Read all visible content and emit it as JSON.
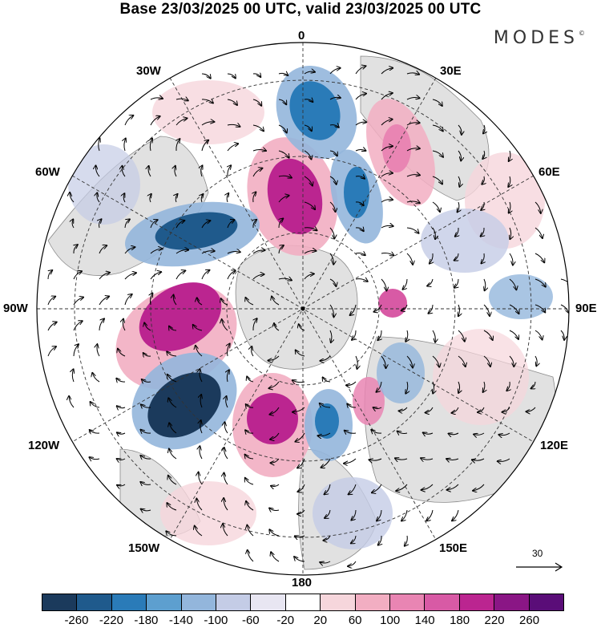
{
  "title": "Base 23/03/2025 00 UTC, valid 23/03/2025 00 UTC",
  "logo": "MODES",
  "logo_mark": "©",
  "meridian_labels": {
    "lon_0": "0",
    "lon_30e": "30E",
    "lon_60e": "60E",
    "lon_90e": "90E",
    "lon_120e": "120E",
    "lon_150e": "150E",
    "lon_180": "180",
    "lon_150w": "150W",
    "lon_120w": "120W",
    "lon_90w": "90W",
    "lon_60w": "60W",
    "lon_30w": "30W"
  },
  "vector_scale_label": "30",
  "colorbar": {
    "colors": [
      "#1b3a5c",
      "#1f5a8c",
      "#2a7bb8",
      "#5d9fcf",
      "#93b6dc",
      "#c4cce6",
      "#e8e6f2",
      "#ffffff",
      "#f6d6dc",
      "#f2aec2",
      "#e985b3",
      "#d85aa5",
      "#bb2590",
      "#8a1685",
      "#5a0d78"
    ],
    "tick_labels": [
      "-260",
      "-220",
      "-180",
      "-140",
      "-100",
      "-60",
      "-20",
      "20",
      "60",
      "100",
      "140",
      "180",
      "220",
      "260"
    ]
  },
  "colors": {
    "land": "#dcdcdc",
    "ocean": "#ffffff",
    "coast": "#777777",
    "graticule": "#333333"
  }
}
